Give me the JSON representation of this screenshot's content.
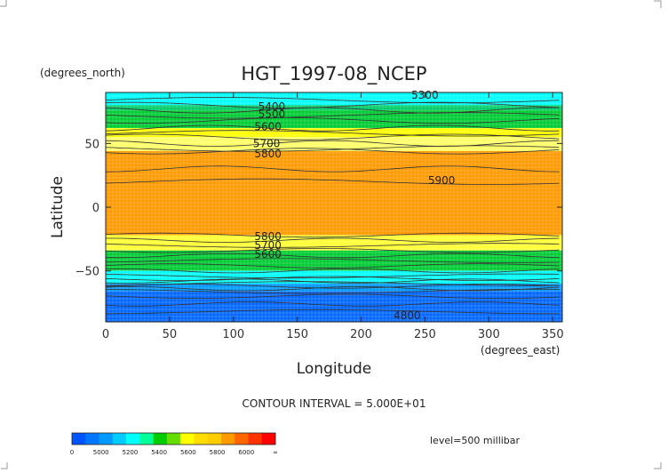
{
  "chart_data": {
    "type": "heatmap",
    "title": "HGT_1997-08_NCEP",
    "xlabel": "Longitude",
    "ylabel": "Latitude",
    "x_unit": "(degrees_east)",
    "y_unit": "(degrees_north)",
    "xlim": [
      0,
      357.5
    ],
    "ylim": [
      -90,
      90
    ],
    "x_ticks": [
      "0",
      "50",
      "100",
      "150",
      "200",
      "250",
      "300",
      "350"
    ],
    "x_tick_values": [
      0,
      50,
      100,
      150,
      200,
      250,
      300,
      350
    ],
    "y_ticks": [
      "50",
      "0",
      "−50"
    ],
    "y_tick_values": [
      50,
      0,
      -50
    ],
    "grid": true,
    "contour_interval_text": "CONTOUR INTERVAL = 5.000E+01",
    "level_text": "level=500 millibar",
    "contour_labels": [
      {
        "text": "5300",
        "x": 250,
        "y": 88
      },
      {
        "text": "5400",
        "x": 130,
        "y": 79
      },
      {
        "text": "5500",
        "x": 130,
        "y": 73
      },
      {
        "text": "5600",
        "x": 127,
        "y": 63
      },
      {
        "text": "5700",
        "x": 126,
        "y": 50
      },
      {
        "text": "5800",
        "x": 127,
        "y": 42
      },
      {
        "text": "5900",
        "x": 263,
        "y": 21
      },
      {
        "text": "5800",
        "x": 127,
        "y": -23
      },
      {
        "text": "5700",
        "x": 127,
        "y": -30
      },
      {
        "text": "5600",
        "x": 127,
        "y": -37
      },
      {
        "text": "4800",
        "x": 236,
        "y": -85
      }
    ],
    "bands": [
      {
        "lat_top": 90,
        "lat_bottom": 80,
        "color": "#00ffff"
      },
      {
        "lat_top": 80,
        "lat_bottom": 76,
        "color": "#00cc66"
      },
      {
        "lat_top": 76,
        "lat_bottom": 62,
        "color": "#00cc33"
      },
      {
        "lat_top": 62,
        "lat_bottom": 55,
        "color": "#ffff00"
      },
      {
        "lat_top": 55,
        "lat_bottom": 44,
        "color": "#ffff66"
      },
      {
        "lat_top": 44,
        "lat_bottom": -22,
        "color": "#ff9900"
      },
      {
        "lat_top": -22,
        "lat_bottom": -34,
        "color": "#ffff33"
      },
      {
        "lat_top": -34,
        "lat_bottom": -50,
        "color": "#00cc33"
      },
      {
        "lat_top": -50,
        "lat_bottom": -60,
        "color": "#00ffff"
      },
      {
        "lat_top": -60,
        "lat_bottom": -66,
        "color": "#0099ff"
      },
      {
        "lat_top": -66,
        "lat_bottom": -90,
        "color": "#0066ff"
      }
    ],
    "colorbar": {
      "labels": [
        "0",
        "5000",
        "5200",
        "5400",
        "5600",
        "5800",
        "6000",
        "∞"
      ],
      "colors": [
        "#0055ff",
        "#0077ff",
        "#0099ff",
        "#00ccff",
        "#00ffff",
        "#00ff99",
        "#00cc00",
        "#66dd00",
        "#ffff00",
        "#ffdd00",
        "#ffcc00",
        "#ff9900",
        "#ff6600",
        "#ff3300",
        "#ff0000"
      ]
    }
  }
}
